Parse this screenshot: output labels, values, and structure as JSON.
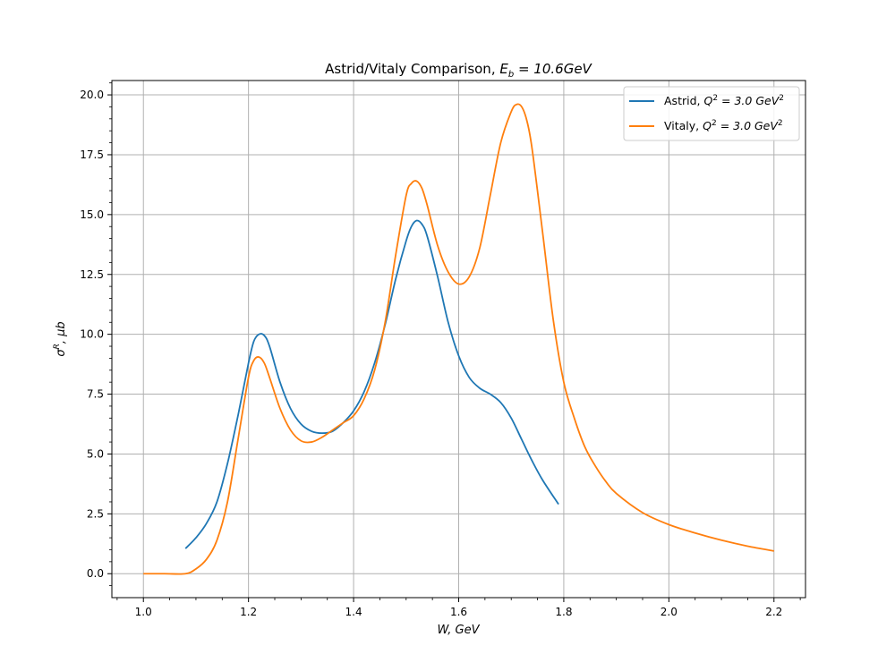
{
  "chart_data": {
    "type": "line",
    "title_plain": "Astrid/Vitaly Comparison, ",
    "title_math": "E",
    "title_math_sub": "b",
    "title_math_rest": " = 10.6GeV",
    "xlabel": "W, GeV",
    "ylabel_symbol": "σ",
    "ylabel_sup": "R",
    "ylabel_rest": ", μb",
    "xlim": [
      0.94,
      2.26
    ],
    "ylim": [
      -1.0,
      20.6
    ],
    "xticks": [
      1.0,
      1.2,
      1.4,
      1.6,
      1.8,
      2.0,
      2.2
    ],
    "xtick_labels": [
      "1.0",
      "1.2",
      "1.4",
      "1.6",
      "1.8",
      "2.0",
      "2.2"
    ],
    "yticks": [
      0.0,
      2.5,
      5.0,
      7.5,
      10.0,
      12.5,
      15.0,
      17.5,
      20.0
    ],
    "ytick_labels": [
      "0.0",
      "2.5",
      "5.0",
      "7.5",
      "10.0",
      "12.5",
      "15.0",
      "17.5",
      "20.0"
    ],
    "grid": true,
    "legend_position": "upper right",
    "series": [
      {
        "name_prefix": "Astrid, ",
        "name_math": "Q",
        "name_math_rest": " = 3.0 GeV",
        "color": "#1f77b4",
        "x": [
          1.08,
          1.1,
          1.12,
          1.14,
          1.16,
          1.18,
          1.2,
          1.21,
          1.22,
          1.23,
          1.24,
          1.26,
          1.28,
          1.3,
          1.32,
          1.34,
          1.36,
          1.38,
          1.4,
          1.42,
          1.44,
          1.46,
          1.48,
          1.5,
          1.51,
          1.52,
          1.53,
          1.54,
          1.56,
          1.58,
          1.6,
          1.62,
          1.64,
          1.66,
          1.68,
          1.7,
          1.72,
          1.74,
          1.76,
          1.79
        ],
        "y": [
          1.05,
          1.5,
          2.1,
          3.0,
          4.6,
          6.6,
          8.8,
          9.7,
          10.0,
          9.95,
          9.5,
          8.0,
          6.9,
          6.25,
          5.95,
          5.87,
          5.95,
          6.3,
          6.8,
          7.6,
          8.8,
          10.4,
          12.3,
          13.9,
          14.5,
          14.75,
          14.6,
          14.1,
          12.4,
          10.5,
          9.1,
          8.2,
          7.75,
          7.5,
          7.15,
          6.5,
          5.6,
          4.7,
          3.9,
          2.9
        ]
      },
      {
        "name_prefix": "Vitaly, ",
        "name_math": "Q",
        "name_math_rest": " = 3.0 GeV",
        "color": "#ff7f0e",
        "x": [
          1.0,
          1.04,
          1.08,
          1.1,
          1.12,
          1.14,
          1.16,
          1.18,
          1.2,
          1.21,
          1.22,
          1.23,
          1.24,
          1.26,
          1.28,
          1.3,
          1.32,
          1.34,
          1.36,
          1.38,
          1.4,
          1.42,
          1.44,
          1.46,
          1.48,
          1.5,
          1.51,
          1.52,
          1.53,
          1.54,
          1.56,
          1.58,
          1.6,
          1.62,
          1.64,
          1.66,
          1.68,
          1.7,
          1.71,
          1.72,
          1.73,
          1.74,
          1.76,
          1.78,
          1.8,
          1.82,
          1.84,
          1.86,
          1.88,
          1.9,
          1.95,
          2.0,
          2.05,
          2.1,
          2.15,
          2.2
        ],
        "y": [
          0.0,
          0.0,
          0.0,
          0.2,
          0.6,
          1.4,
          3.0,
          5.6,
          8.2,
          8.9,
          9.05,
          8.8,
          8.2,
          6.9,
          6.0,
          5.55,
          5.5,
          5.7,
          6.0,
          6.3,
          6.6,
          7.3,
          8.5,
          10.5,
          13.3,
          15.8,
          16.3,
          16.4,
          16.1,
          15.4,
          13.7,
          12.6,
          12.1,
          12.4,
          13.6,
          15.8,
          18.0,
          19.3,
          19.6,
          19.5,
          18.9,
          17.7,
          14.2,
          10.6,
          8.0,
          6.5,
          5.3,
          4.5,
          3.85,
          3.35,
          2.55,
          2.05,
          1.7,
          1.4,
          1.15,
          0.95
        ]
      }
    ]
  }
}
